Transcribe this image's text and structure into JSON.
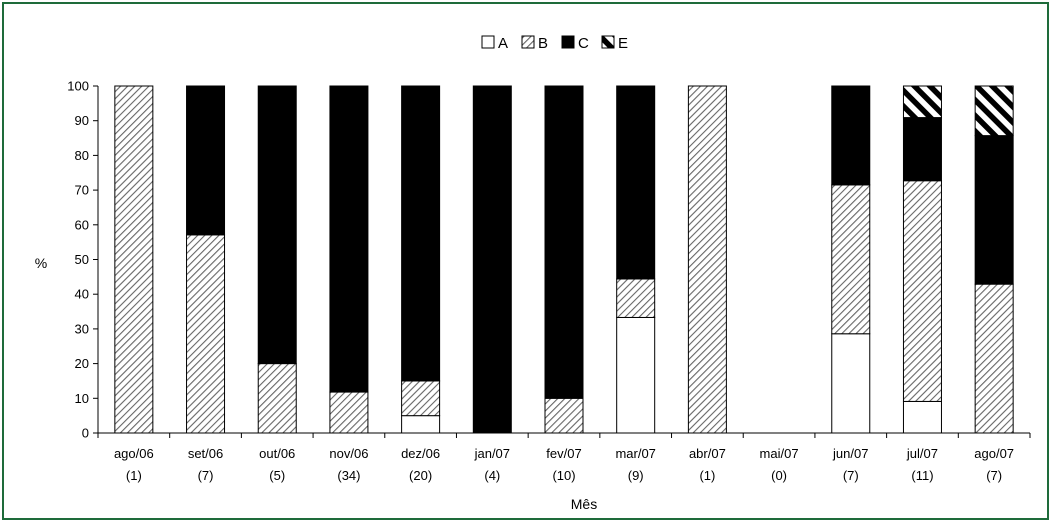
{
  "frame_color": "#1e6b3a",
  "chart_data": {
    "type": "bar",
    "stacked": true,
    "title": "",
    "xlabel": "Mês",
    "ylabel": "%",
    "ylim": [
      0,
      100
    ],
    "yticks": [
      0,
      10,
      20,
      30,
      40,
      50,
      60,
      70,
      80,
      90,
      100
    ],
    "grid": false,
    "legend_position": "top-center",
    "categories": [
      "ago/06",
      "set/06",
      "out/06",
      "nov/06",
      "dez/06",
      "jan/07",
      "fev/07",
      "mar/07",
      "abr/07",
      "mai/07",
      "jun/07",
      "jul/07",
      "ago/07"
    ],
    "category_counts": [
      "(1)",
      "(7)",
      "(5)",
      "(34)",
      "(20)",
      "(4)",
      "(10)",
      "(9)",
      "(1)",
      "(0)",
      "(7)",
      "(11)",
      "(7)"
    ],
    "series": [
      {
        "name": "A",
        "fill": "white",
        "values": [
          0,
          0,
          0,
          0,
          5,
          0,
          0,
          33.3,
          0,
          0,
          28.6,
          9.1,
          0
        ]
      },
      {
        "name": "B",
        "fill": "diagonal-hatch",
        "values": [
          100,
          57.1,
          20,
          11.8,
          10,
          0,
          10,
          11.1,
          100,
          0,
          42.9,
          63.6,
          42.9
        ]
      },
      {
        "name": "C",
        "fill": "black",
        "values": [
          0,
          42.9,
          80,
          88.2,
          85,
          100,
          90,
          55.6,
          0,
          0,
          28.5,
          18.2,
          42.8
        ]
      },
      {
        "name": "E",
        "fill": "wide-diagonal-stripes",
        "values": [
          0,
          0,
          0,
          0,
          0,
          0,
          0,
          0,
          0,
          0,
          0,
          9.1,
          14.3
        ]
      }
    ]
  }
}
